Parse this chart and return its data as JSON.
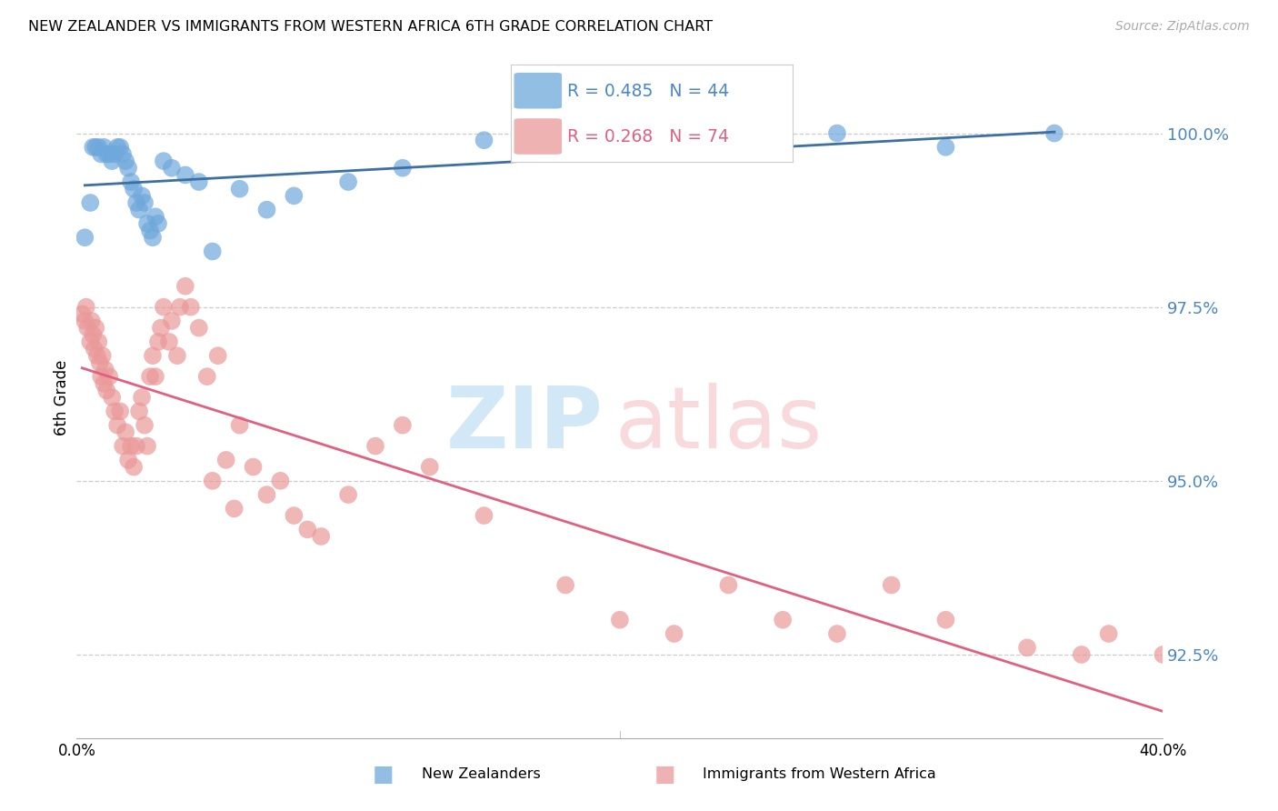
{
  "title": "NEW ZEALANDER VS IMMIGRANTS FROM WESTERN AFRICA 6TH GRADE CORRELATION CHART",
  "source": "Source: ZipAtlas.com",
  "ylabel": "6th Grade",
  "ytick_labels": [
    "100.0%",
    "97.5%",
    "95.0%",
    "92.5%"
  ],
  "ytick_values": [
    100.0,
    97.5,
    95.0,
    92.5
  ],
  "ylim": [
    91.3,
    101.1
  ],
  "xlim": [
    0.0,
    40.0
  ],
  "legend_blue_r": "R = 0.485",
  "legend_blue_n": "N = 44",
  "legend_pink_r": "R = 0.268",
  "legend_pink_n": "N = 74",
  "blue_color": "#6fa8dc",
  "pink_color": "#ea9999",
  "blue_line_color": "#3d6fa3",
  "pink_line_color": "#e06080",
  "blue_scatter_x": [
    0.3,
    0.5,
    0.6,
    0.7,
    0.8,
    0.9,
    1.0,
    1.1,
    1.2,
    1.3,
    1.4,
    1.5,
    1.6,
    1.7,
    1.8,
    1.9,
    2.0,
    2.1,
    2.2,
    2.3,
    2.4,
    2.5,
    2.6,
    2.7,
    2.8,
    2.9,
    3.0,
    3.2,
    3.5,
    4.0,
    4.5,
    5.0,
    6.0,
    7.0,
    8.0,
    10.0,
    12.0,
    15.0,
    18.0,
    22.0,
    26.0,
    28.0,
    32.0,
    36.0
  ],
  "blue_scatter_y": [
    98.5,
    99.0,
    99.8,
    99.8,
    99.8,
    99.7,
    99.8,
    99.7,
    99.7,
    99.6,
    99.7,
    99.8,
    99.8,
    99.7,
    99.6,
    99.5,
    99.3,
    99.2,
    99.0,
    98.9,
    99.1,
    99.0,
    98.7,
    98.6,
    98.5,
    98.8,
    98.7,
    99.6,
    99.5,
    99.4,
    99.3,
    98.3,
    99.2,
    98.9,
    99.1,
    99.3,
    99.5,
    99.9,
    100.0,
    100.0,
    99.8,
    100.0,
    99.8,
    100.0
  ],
  "pink_scatter_x": [
    0.2,
    0.3,
    0.35,
    0.4,
    0.5,
    0.55,
    0.6,
    0.65,
    0.7,
    0.75,
    0.8,
    0.85,
    0.9,
    0.95,
    1.0,
    1.05,
    1.1,
    1.2,
    1.3,
    1.4,
    1.5,
    1.6,
    1.7,
    1.8,
    1.9,
    2.0,
    2.1,
    2.2,
    2.3,
    2.4,
    2.5,
    2.6,
    2.7,
    2.8,
    2.9,
    3.0,
    3.1,
    3.2,
    3.4,
    3.5,
    3.7,
    3.8,
    4.0,
    4.2,
    4.5,
    4.8,
    5.0,
    5.2,
    5.5,
    5.8,
    6.0,
    6.5,
    7.0,
    7.5,
    8.0,
    8.5,
    9.0,
    10.0,
    11.0,
    12.0,
    13.0,
    15.0,
    18.0,
    20.0,
    22.0,
    24.0,
    26.0,
    28.0,
    30.0,
    32.0,
    35.0,
    37.0,
    38.0,
    40.0
  ],
  "pink_scatter_y": [
    97.4,
    97.3,
    97.5,
    97.2,
    97.0,
    97.3,
    97.1,
    96.9,
    97.2,
    96.8,
    97.0,
    96.7,
    96.5,
    96.8,
    96.4,
    96.6,
    96.3,
    96.5,
    96.2,
    96.0,
    95.8,
    96.0,
    95.5,
    95.7,
    95.3,
    95.5,
    95.2,
    95.5,
    96.0,
    96.2,
    95.8,
    95.5,
    96.5,
    96.8,
    96.5,
    97.0,
    97.2,
    97.5,
    97.0,
    97.3,
    96.8,
    97.5,
    97.8,
    97.5,
    97.2,
    96.5,
    95.0,
    96.8,
    95.3,
    94.6,
    95.8,
    95.2,
    94.8,
    95.0,
    94.5,
    94.3,
    94.2,
    94.8,
    95.5,
    95.8,
    95.2,
    94.5,
    93.5,
    93.0,
    92.8,
    93.5,
    93.0,
    92.8,
    93.5,
    93.0,
    92.6,
    92.5,
    92.8,
    92.5
  ]
}
